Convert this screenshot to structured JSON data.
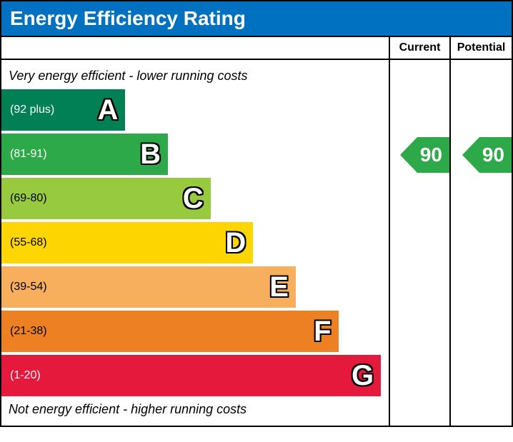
{
  "title": "Energy Efficiency Rating",
  "title_bg": "#0070c0",
  "title_color": "#ffffff",
  "header_current": "Current",
  "header_potential": "Potential",
  "note_top": "Very energy efficient - lower running costs",
  "note_bottom": "Not energy efficient - higher running costs",
  "band_height": 58,
  "band_gap": 8,
  "bands": [
    {
      "letter": "A",
      "range": "(92 plus)",
      "color": "#008054",
      "text_color": "#ffffff",
      "width_pct": 32,
      "min": 92,
      "max": 100
    },
    {
      "letter": "B",
      "range": "(81-91)",
      "color": "#2ea949",
      "text_color": "#ffffff",
      "width_pct": 43,
      "min": 81,
      "max": 91
    },
    {
      "letter": "C",
      "range": "(69-80)",
      "color": "#97ca3e",
      "text_color": "#000000",
      "width_pct": 54,
      "min": 69,
      "max": 80
    },
    {
      "letter": "D",
      "range": "(55-68)",
      "color": "#fdd500",
      "text_color": "#000000",
      "width_pct": 65,
      "min": 55,
      "max": 68
    },
    {
      "letter": "E",
      "range": "(39-54)",
      "color": "#f7af5e",
      "text_color": "#000000",
      "width_pct": 76,
      "min": 39,
      "max": 54
    },
    {
      "letter": "F",
      "range": "(21-38)",
      "color": "#ed8023",
      "text_color": "#000000",
      "width_pct": 87,
      "min": 21,
      "max": 38
    },
    {
      "letter": "G",
      "range": "(1-20)",
      "color": "#e4193b",
      "text_color": "#ffffff",
      "width_pct": 98,
      "min": 1,
      "max": 20
    }
  ],
  "current": {
    "value": 90,
    "band_index": 1,
    "color": "#2ea949"
  },
  "potential": {
    "value": 90,
    "band_index": 1,
    "color": "#2ea949"
  }
}
